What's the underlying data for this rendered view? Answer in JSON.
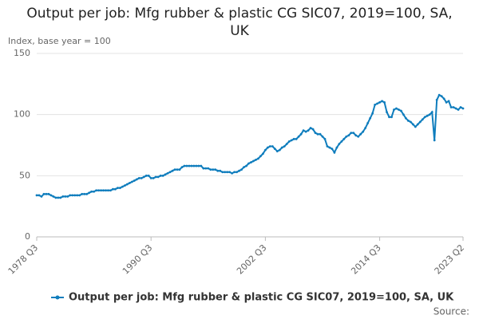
{
  "chart_data": {
    "type": "line",
    "title": "Output per job: Mfg rubber & plastic CG SIC07, 2019=100, SA, UK",
    "y_label": "Index, base year = 100",
    "source": "Source:",
    "categories": [
      "1978 Q3",
      null,
      null,
      null,
      null,
      null,
      null,
      null,
      null,
      null,
      null,
      null,
      null,
      null,
      null,
      null,
      null,
      null,
      null,
      null,
      null,
      null,
      null,
      null,
      null,
      null,
      null,
      null,
      null,
      null,
      null,
      null,
      null,
      null,
      null,
      null,
      null,
      null,
      null,
      null,
      null,
      null,
      null,
      null,
      null,
      null,
      null,
      null,
      "1990 Q3",
      null,
      null,
      null,
      null,
      null,
      null,
      null,
      null,
      null,
      null,
      null,
      null,
      null,
      null,
      null,
      null,
      null,
      null,
      null,
      null,
      null,
      null,
      null,
      null,
      null,
      null,
      null,
      null,
      null,
      null,
      null,
      null,
      null,
      null,
      null,
      null,
      null,
      null,
      null,
      null,
      null,
      null,
      null,
      null,
      null,
      null,
      null,
      "2002 Q3",
      null,
      null,
      null,
      null,
      null,
      null,
      null,
      null,
      null,
      null,
      null,
      null,
      null,
      null,
      null,
      null,
      null,
      null,
      null,
      null,
      null,
      null,
      null,
      null,
      null,
      null,
      null,
      null,
      null,
      null,
      null,
      null,
      null,
      null,
      null,
      null,
      null,
      null,
      null,
      null,
      null,
      null,
      null,
      null,
      null,
      null,
      null,
      "2014 Q3",
      null,
      null,
      null,
      null,
      null,
      null,
      null,
      null,
      null,
      null,
      null,
      null,
      null,
      null,
      null,
      null,
      null,
      null,
      null,
      null,
      null,
      null,
      null,
      null,
      null,
      null,
      null,
      null,
      null,
      null,
      null,
      null,
      null,
      null,
      "2023 Q2"
    ],
    "series": [
      {
        "name": "Output per job: Mfg rubber & plastic CG SIC07, 2019=100, SA, UK",
        "color": "#0f7dbd",
        "values": [
          34,
          34,
          33,
          35,
          35,
          35,
          34,
          33,
          32,
          32,
          32,
          33,
          33,
          33,
          34,
          34,
          34,
          34,
          34,
          35,
          35,
          35,
          36,
          37,
          37,
          38,
          38,
          38,
          38,
          38,
          38,
          38,
          39,
          39,
          40,
          40,
          41,
          42,
          43,
          44,
          45,
          46,
          47,
          48,
          48,
          49,
          50,
          50,
          48,
          48,
          49,
          49,
          50,
          50,
          51,
          52,
          53,
          54,
          55,
          55,
          55,
          57,
          58,
          58,
          58,
          58,
          58,
          58,
          58,
          58,
          56,
          56,
          56,
          55,
          55,
          55,
          54,
          54,
          53,
          53,
          53,
          53,
          52,
          53,
          53,
          54,
          55,
          57,
          58,
          60,
          61,
          62,
          63,
          64,
          66,
          68,
          71,
          73,
          74,
          74,
          72,
          70,
          71,
          73,
          74,
          76,
          78,
          79,
          80,
          80,
          82,
          84,
          87,
          86,
          87,
          89,
          88,
          85,
          84,
          84,
          82,
          80,
          74,
          73,
          72,
          69,
          73,
          76,
          78,
          80,
          82,
          83,
          85,
          85,
          83,
          82,
          84,
          86,
          89,
          93,
          97,
          101,
          108,
          109,
          110,
          111,
          110,
          102,
          98,
          98,
          104,
          105,
          104,
          103,
          100,
          97,
          95,
          94,
          92,
          90,
          92,
          94,
          96,
          98,
          99,
          100,
          102,
          79,
          112,
          116,
          115,
          113,
          110,
          111,
          106,
          106,
          105,
          104,
          106,
          105
        ]
      }
    ],
    "ylim": [
      0,
      150
    ],
    "yticks": [
      0,
      50,
      100,
      150
    ],
    "grid": true
  }
}
